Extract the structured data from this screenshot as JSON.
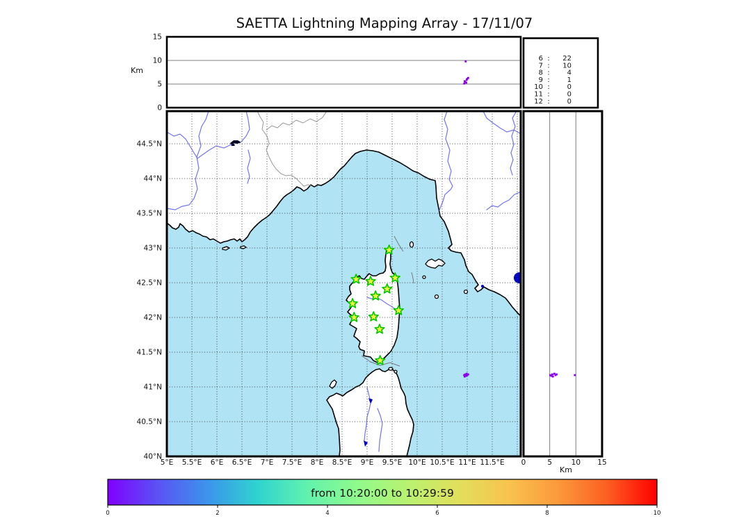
{
  "title": "SAETTA Lightning Mapping Array - 17/11/07",
  "colors": {
    "sea": "#b0e4f5",
    "land": "#ffffff",
    "coastline": "#000000",
    "river": "#7373f2",
    "country_border": "#999999",
    "maritime_line": "#777777",
    "gridline": "#444444",
    "panel_gridline": "#808080",
    "station_fill": "#f2f23c",
    "station_stroke": "#00c800",
    "lightning_source": "#8a00e8",
    "stats_highlight": "#ff0000",
    "lake_blue": "#0000cc",
    "lake_dark": "#000020"
  },
  "top_panel": {
    "ylabel": "Km",
    "yticks": [
      {
        "label": "0",
        "km": 0
      },
      {
        "label": "5",
        "km": 5
      },
      {
        "label": "10",
        "km": 10
      },
      {
        "label": "15",
        "km": 15
      }
    ],
    "grid_km": [
      5,
      10
    ]
  },
  "stats_panel": {
    "rows": [
      {
        "bin": "6",
        "count": "22",
        "highlight": false
      },
      {
        "bin": "7",
        "count": "10",
        "highlight": true
      },
      {
        "bin": "8",
        "count": "4",
        "highlight": false
      },
      {
        "bin": "9",
        "count": "1",
        "highlight": false
      },
      {
        "bin": "10",
        "count": "0",
        "highlight": false
      },
      {
        "bin": "11",
        "count": "0",
        "highlight": false
      },
      {
        "bin": "12",
        "count": "0",
        "highlight": false
      }
    ]
  },
  "map_panel": {
    "lat_ticks": [
      {
        "label": "44.5°N",
        "lat": 44.5
      },
      {
        "label": "44°N",
        "lat": 44.0
      },
      {
        "label": "43.5°N",
        "lat": 43.5
      },
      {
        "label": "43°N",
        "lat": 43.0
      },
      {
        "label": "42.5°N",
        "lat": 42.5
      },
      {
        "label": "42°N",
        "lat": 42.0
      },
      {
        "label": "41.5°N",
        "lat": 41.5
      },
      {
        "label": "41°N",
        "lat": 41.0
      },
      {
        "label": "40.5°N",
        "lat": 40.5
      },
      {
        "label": "40°N",
        "lat": 40.0
      }
    ],
    "lon_ticks": [
      {
        "label": "5°E",
        "lon": 5.0
      },
      {
        "label": "5.5°E",
        "lon": 5.5
      },
      {
        "label": "6°E",
        "lon": 6.0
      },
      {
        "label": "6.5°E",
        "lon": 6.5
      },
      {
        "label": "7°E",
        "lon": 7.0
      },
      {
        "label": "7.5°E",
        "lon": 7.5
      },
      {
        "label": "8°E",
        "lon": 8.0
      },
      {
        "label": "8.5°E",
        "lon": 8.5
      },
      {
        "label": "9°E",
        "lon": 9.0
      },
      {
        "label": "9.5°E",
        "lon": 9.5
      },
      {
        "label": "10°E",
        "lon": 10.0
      },
      {
        "label": "10.5°E",
        "lon": 10.5
      },
      {
        "label": "11°E",
        "lon": 11.0
      },
      {
        "label": "11.5°E",
        "lon": 11.5
      }
    ],
    "extra_grid_lons": [
      12.0
    ],
    "stations": [
      {
        "lon": 9.44,
        "lat": 42.97
      },
      {
        "lon": 8.78,
        "lat": 42.55
      },
      {
        "lon": 9.07,
        "lat": 42.52
      },
      {
        "lon": 9.56,
        "lat": 42.57
      },
      {
        "lon": 9.4,
        "lat": 42.41
      },
      {
        "lon": 9.17,
        "lat": 42.31
      },
      {
        "lon": 8.71,
        "lat": 42.2
      },
      {
        "lon": 9.63,
        "lat": 42.1
      },
      {
        "lon": 8.74,
        "lat": 42.0
      },
      {
        "lon": 9.13,
        "lat": 42.01
      },
      {
        "lon": 9.25,
        "lat": 41.83
      },
      {
        "lon": 9.26,
        "lat": 41.38
      }
    ]
  },
  "right_panel": {
    "xlabel": "Km",
    "xticks": [
      {
        "label": "0",
        "km": 0
      },
      {
        "label": "5",
        "km": 5
      },
      {
        "label": "10",
        "km": 10
      },
      {
        "label": "15",
        "km": 15
      }
    ],
    "grid_km": [
      5,
      10
    ]
  },
  "events": [
    {
      "lon": 10.94,
      "lat": 41.17,
      "alt_km": 5.1
    },
    {
      "lon": 10.96,
      "lat": 41.18,
      "alt_km": 5.5
    },
    {
      "lon": 10.98,
      "lat": 41.16,
      "alt_km": 5.3
    },
    {
      "lon": 10.99,
      "lat": 41.19,
      "alt_km": 5.9
    },
    {
      "lon": 11.0,
      "lat": 41.17,
      "alt_km": 6.1
    },
    {
      "lon": 10.95,
      "lat": 41.15,
      "alt_km": 5.6
    },
    {
      "lon": 11.02,
      "lat": 41.18,
      "alt_km": 6.3
    },
    {
      "lon": 10.97,
      "lat": 41.17,
      "alt_km": 9.8
    }
  ],
  "colorbar": {
    "label": "from 10:20:00 to 10:29:59",
    "ticks": [
      {
        "label": "0",
        "value": 0
      },
      {
        "label": "2",
        "value": 2
      },
      {
        "label": "4",
        "value": 4
      },
      {
        "label": "6",
        "value": 6
      },
      {
        "label": "8",
        "value": 8
      },
      {
        "label": "10",
        "value": 10
      }
    ],
    "gradient": [
      "#8000ff",
      "#5a52f5",
      "#3c94ec",
      "#2fd3d0",
      "#62f2ae",
      "#90fa8c",
      "#b8f271",
      "#e0e05c",
      "#f8c44e",
      "#fc9a3c",
      "#fc5f22",
      "#ff0000"
    ]
  },
  "chart_data": {
    "type": "scatter",
    "title": "SAETTA Lightning Mapping Array - 17/11/07",
    "panels": [
      {
        "name": "altitude-vs-longitude",
        "ylabel": "Km",
        "ylim": [
          0,
          15
        ],
        "xlim_deg_e": [
          5.0,
          12.07
        ],
        "grid": "horizontal at 5 and 10 km"
      },
      {
        "name": "map-lon-lat",
        "xlim_deg_e": [
          5.0,
          12.07
        ],
        "ylim_deg_n": [
          40.0,
          44.97
        ],
        "grid": "dotted every 0.5 degree"
      },
      {
        "name": "altitude-vs-latitude",
        "xlabel": "Km",
        "xlim": [
          0,
          15
        ],
        "ylim_deg_n": [
          40.0,
          44.97
        ],
        "grid": "vertical at 5 and 10 km"
      }
    ],
    "stations_lon_lat": [
      [
        9.44,
        42.97
      ],
      [
        8.78,
        42.55
      ],
      [
        9.07,
        42.52
      ],
      [
        9.56,
        42.57
      ],
      [
        9.4,
        42.41
      ],
      [
        9.17,
        42.31
      ],
      [
        8.71,
        42.2
      ],
      [
        9.63,
        42.1
      ],
      [
        8.74,
        42.0
      ],
      [
        9.13,
        42.01
      ],
      [
        9.25,
        41.83
      ],
      [
        9.26,
        41.38
      ]
    ],
    "lightning_sources_lon_lat_altkm": [
      [
        10.94,
        41.17,
        5.1
      ],
      [
        10.96,
        41.18,
        5.5
      ],
      [
        10.98,
        41.16,
        5.3
      ],
      [
        10.99,
        41.19,
        5.9
      ],
      [
        11.0,
        41.17,
        6.1
      ],
      [
        10.95,
        41.15,
        5.6
      ],
      [
        11.02,
        41.18,
        6.3
      ],
      [
        10.97,
        41.17,
        9.8
      ]
    ],
    "source_count_by_altitude_km": {
      "6": 22,
      "7": 10,
      "8": 4,
      "9": 1,
      "10": 0,
      "11": 0,
      "12": 0
    },
    "highlighted_altitude_bin": "7",
    "time_window": "from 10:20:00 to 10:29:59",
    "colorbar_range": [
      0,
      10
    ],
    "legend_position": "none"
  }
}
